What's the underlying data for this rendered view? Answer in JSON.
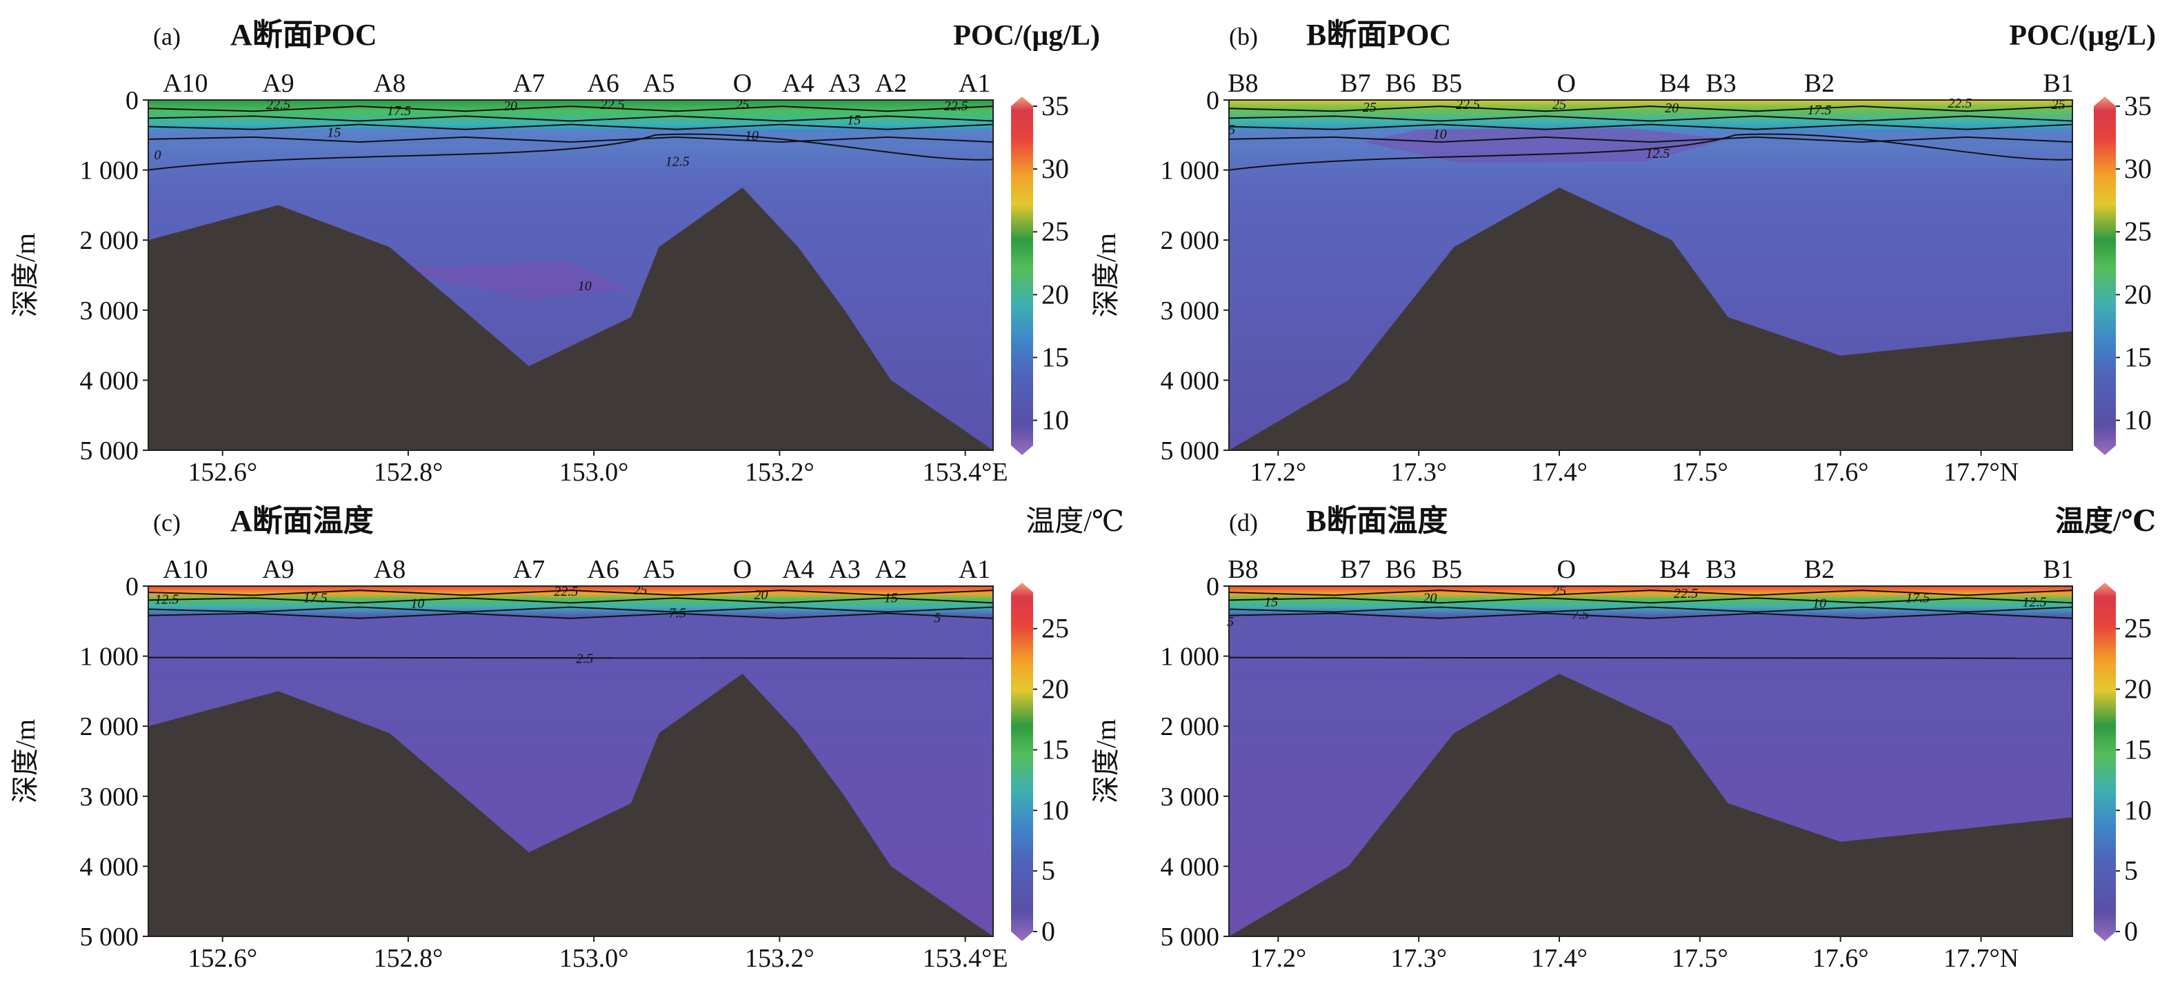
{
  "figure_name": "section-poc-and-temperature-panels",
  "colors": {
    "seafloor": "#3f3a37",
    "text": "#111111",
    "contour": "#111111",
    "colormap": [
      "#8a5bb0",
      "#5b4fa6",
      "#4f63b8",
      "#3f86c9",
      "#3fb0b0",
      "#56bd5a",
      "#2f9a42",
      "#e3c82f",
      "#f3a12a",
      "#e8443b",
      "#d73a4a",
      "#f7a07a"
    ]
  },
  "chart_data": [
    {
      "id": "a",
      "type": "heatmap",
      "panel_label": "(a)",
      "title": "A断面POC",
      "colorbar_label": "POC/(μg/L)",
      "ylabel": "深度/m",
      "xlim": [
        152.52,
        153.43
      ],
      "ylim": [
        0,
        5000
      ],
      "xticks": [
        152.6,
        152.8,
        153.0,
        153.2,
        153.4
      ],
      "xtick_labels": [
        "152.6°",
        "152.8°",
        "153.0°",
        "153.2°",
        "153.4°E"
      ],
      "yticks": [
        0,
        1000,
        2000,
        3000,
        4000,
        5000
      ],
      "ytick_labels": [
        "0",
        "1 000",
        "2 000",
        "3 000",
        "4 000",
        "5 000"
      ],
      "cbar_range": [
        8,
        35
      ],
      "cbar_ticks": [
        10,
        15,
        20,
        25,
        30,
        35
      ],
      "cbar_tick_labels": [
        "10",
        "15",
        "20",
        "25",
        "30",
        "35"
      ],
      "stations": [
        {
          "name": "A10",
          "x": 152.56
        },
        {
          "name": "A9",
          "x": 152.66
        },
        {
          "name": "A8",
          "x": 152.78
        },
        {
          "name": "A7",
          "x": 152.93
        },
        {
          "name": "A6",
          "x": 153.01
        },
        {
          "name": "A5",
          "x": 153.07
        },
        {
          "name": "O",
          "x": 153.16
        },
        {
          "name": "A4",
          "x": 153.22
        },
        {
          "name": "A3",
          "x": 153.27
        },
        {
          "name": "A2",
          "x": 153.32
        },
        {
          "name": "A1",
          "x": 153.41
        }
      ],
      "seafloor_depth": [
        [
          152.52,
          2000
        ],
        [
          152.66,
          1500
        ],
        [
          152.78,
          2100
        ],
        [
          152.93,
          3800
        ],
        [
          153.04,
          3100
        ],
        [
          153.07,
          2100
        ],
        [
          153.16,
          1250
        ],
        [
          153.22,
          2100
        ],
        [
          153.27,
          3000
        ],
        [
          153.32,
          4000
        ],
        [
          153.43,
          5000
        ]
      ],
      "contour_labels": [
        {
          "text": "22.5",
          "x": 152.66,
          "y": 60
        },
        {
          "text": "17.5",
          "x": 152.79,
          "y": 150
        },
        {
          "text": "20",
          "x": 152.91,
          "y": 80
        },
        {
          "text": "22.5",
          "x": 153.02,
          "y": 60
        },
        {
          "text": "25",
          "x": 153.16,
          "y": 60
        },
        {
          "text": "22.5",
          "x": 153.39,
          "y": 80
        },
        {
          "text": "15",
          "x": 152.72,
          "y": 460
        },
        {
          "text": "15",
          "x": 153.28,
          "y": 280
        },
        {
          "text": "10",
          "x": 153.17,
          "y": 500
        },
        {
          "text": "12.5",
          "x": 153.09,
          "y": 870
        },
        {
          "text": "0",
          "x": 152.53,
          "y": 780
        },
        {
          "text": "10",
          "x": 152.99,
          "y": 2650
        }
      ]
    },
    {
      "id": "b",
      "type": "heatmap",
      "panel_label": "(b)",
      "title": "B断面POC",
      "colorbar_label": "POC/(μg/L)",
      "ylabel": "深度/m",
      "xlim": [
        17.165,
        17.765
      ],
      "ylim": [
        0,
        5000
      ],
      "xticks": [
        17.2,
        17.3,
        17.4,
        17.5,
        17.6,
        17.7
      ],
      "xtick_labels": [
        "17.2°",
        "17.3°",
        "17.4°",
        "17.5°",
        "17.6°",
        "17.7°N"
      ],
      "yticks": [
        0,
        1000,
        2000,
        3000,
        4000,
        5000
      ],
      "ytick_labels": [
        "0",
        "1 000",
        "2 000",
        "3 000",
        "4 000",
        "5 000"
      ],
      "cbar_range": [
        8,
        35
      ],
      "cbar_ticks": [
        10,
        15,
        20,
        25,
        30,
        35
      ],
      "cbar_tick_labels": [
        "10",
        "15",
        "20",
        "25",
        "30",
        "35"
      ],
      "stations": [
        {
          "name": "B8",
          "x": 17.175
        },
        {
          "name": "B7",
          "x": 17.255
        },
        {
          "name": "B6",
          "x": 17.287
        },
        {
          "name": "B5",
          "x": 17.32
        },
        {
          "name": "O",
          "x": 17.405
        },
        {
          "name": "B4",
          "x": 17.482
        },
        {
          "name": "B3",
          "x": 17.515
        },
        {
          "name": "B2",
          "x": 17.585
        },
        {
          "name": "B1",
          "x": 17.755
        }
      ],
      "seafloor_depth": [
        [
          17.165,
          5000
        ],
        [
          17.25,
          4000
        ],
        [
          17.325,
          2100
        ],
        [
          17.4,
          1250
        ],
        [
          17.48,
          2000
        ],
        [
          17.52,
          3100
        ],
        [
          17.6,
          3650
        ],
        [
          17.765,
          3300
        ]
      ],
      "contour_labels": [
        {
          "text": "25",
          "x": 17.265,
          "y": 100
        },
        {
          "text": "22.5",
          "x": 17.335,
          "y": 60
        },
        {
          "text": "25",
          "x": 17.4,
          "y": 60
        },
        {
          "text": "20",
          "x": 17.48,
          "y": 110
        },
        {
          "text": "17.5",
          "x": 17.585,
          "y": 140
        },
        {
          "text": "22.5",
          "x": 17.685,
          "y": 40
        },
        {
          "text": "25",
          "x": 17.755,
          "y": 60
        },
        {
          "text": "5",
          "x": 17.167,
          "y": 420
        },
        {
          "text": "10",
          "x": 17.315,
          "y": 480
        },
        {
          "text": "12.5",
          "x": 17.47,
          "y": 760
        }
      ]
    },
    {
      "id": "c",
      "type": "heatmap",
      "panel_label": "(c)",
      "title": "A断面温度",
      "colorbar_label": "温度/℃",
      "ylabel": "深度/m",
      "xlim": [
        152.52,
        153.43
      ],
      "ylim": [
        0,
        5000
      ],
      "xticks": [
        152.6,
        152.8,
        153.0,
        153.2,
        153.4
      ],
      "xtick_labels": [
        "152.6°",
        "152.8°",
        "153.0°",
        "153.2°",
        "153.4°E"
      ],
      "yticks": [
        0,
        1000,
        2000,
        3000,
        4000,
        5000
      ],
      "ytick_labels": [
        "0",
        "1 000",
        "2 000",
        "3 000",
        "4 000",
        "5 000"
      ],
      "cbar_range": [
        0,
        28
      ],
      "cbar_ticks": [
        0,
        5,
        10,
        15,
        20,
        25
      ],
      "cbar_tick_labels": [
        "0",
        "5",
        "10",
        "15",
        "20",
        "25"
      ],
      "stations": [
        {
          "name": "A10",
          "x": 152.56
        },
        {
          "name": "A9",
          "x": 152.66
        },
        {
          "name": "A8",
          "x": 152.78
        },
        {
          "name": "A7",
          "x": 152.93
        },
        {
          "name": "A6",
          "x": 153.01
        },
        {
          "name": "A5",
          "x": 153.07
        },
        {
          "name": "O",
          "x": 153.16
        },
        {
          "name": "A4",
          "x": 153.22
        },
        {
          "name": "A3",
          "x": 153.27
        },
        {
          "name": "A2",
          "x": 153.32
        },
        {
          "name": "A1",
          "x": 153.41
        }
      ],
      "seafloor_depth": [
        [
          152.52,
          2000
        ],
        [
          152.66,
          1500
        ],
        [
          152.78,
          2100
        ],
        [
          152.93,
          3800
        ],
        [
          153.04,
          3100
        ],
        [
          153.07,
          2100
        ],
        [
          153.16,
          1250
        ],
        [
          153.22,
          2100
        ],
        [
          153.27,
          3000
        ],
        [
          153.32,
          4000
        ],
        [
          153.43,
          5000
        ]
      ],
      "contour_labels": [
        {
          "text": "12.5",
          "x": 152.54,
          "y": 180
        },
        {
          "text": "17.5",
          "x": 152.7,
          "y": 160
        },
        {
          "text": "10",
          "x": 152.81,
          "y": 240
        },
        {
          "text": "22.5",
          "x": 152.97,
          "y": 70
        },
        {
          "text": "25",
          "x": 153.05,
          "y": 50
        },
        {
          "text": "20",
          "x": 153.18,
          "y": 120
        },
        {
          "text": "15",
          "x": 153.32,
          "y": 160
        },
        {
          "text": "7.5",
          "x": 153.09,
          "y": 380
        },
        {
          "text": "5",
          "x": 153.37,
          "y": 450
        },
        {
          "text": "2.5",
          "x": 152.99,
          "y": 1030
        }
      ]
    },
    {
      "id": "d",
      "type": "heatmap",
      "panel_label": "(d)",
      "title": "B断面温度",
      "colorbar_label": "温度/℃",
      "ylabel": "深度/m",
      "xlim": [
        17.165,
        17.765
      ],
      "ylim": [
        0,
        5000
      ],
      "xticks": [
        17.2,
        17.3,
        17.4,
        17.5,
        17.6,
        17.7
      ],
      "xtick_labels": [
        "17.2°",
        "17.3°",
        "17.4°",
        "17.5°",
        "17.6°",
        "17.7°N"
      ],
      "yticks": [
        0,
        1000,
        2000,
        3000,
        4000,
        5000
      ],
      "ytick_labels": [
        "0",
        "1 000",
        "2 000",
        "3 000",
        "4 000",
        "5 000"
      ],
      "cbar_range": [
        0,
        28
      ],
      "cbar_ticks": [
        0,
        5,
        10,
        15,
        20,
        25
      ],
      "cbar_tick_labels": [
        "0",
        "5",
        "10",
        "15",
        "20",
        "25"
      ],
      "stations": [
        {
          "name": "B8",
          "x": 17.175
        },
        {
          "name": "B7",
          "x": 17.255
        },
        {
          "name": "B6",
          "x": 17.287
        },
        {
          "name": "B5",
          "x": 17.32
        },
        {
          "name": "O",
          "x": 17.405
        },
        {
          "name": "B4",
          "x": 17.482
        },
        {
          "name": "B3",
          "x": 17.515
        },
        {
          "name": "B2",
          "x": 17.585
        },
        {
          "name": "B1",
          "x": 17.755
        }
      ],
      "seafloor_depth": [
        [
          17.165,
          5000
        ],
        [
          17.25,
          4000
        ],
        [
          17.325,
          2100
        ],
        [
          17.4,
          1250
        ],
        [
          17.48,
          2000
        ],
        [
          17.52,
          3100
        ],
        [
          17.6,
          3650
        ],
        [
          17.765,
          3300
        ]
      ],
      "contour_labels": [
        {
          "text": "15",
          "x": 17.195,
          "y": 220
        },
        {
          "text": "20",
          "x": 17.308,
          "y": 160
        },
        {
          "text": "25",
          "x": 17.4,
          "y": 60
        },
        {
          "text": "22.5",
          "x": 17.49,
          "y": 100
        },
        {
          "text": "10",
          "x": 17.585,
          "y": 240
        },
        {
          "text": "17.5",
          "x": 17.655,
          "y": 160
        },
        {
          "text": "12.5",
          "x": 17.738,
          "y": 220
        },
        {
          "text": "7.5",
          "x": 17.415,
          "y": 400
        },
        {
          "text": "5",
          "x": 17.166,
          "y": 500
        }
      ]
    }
  ]
}
